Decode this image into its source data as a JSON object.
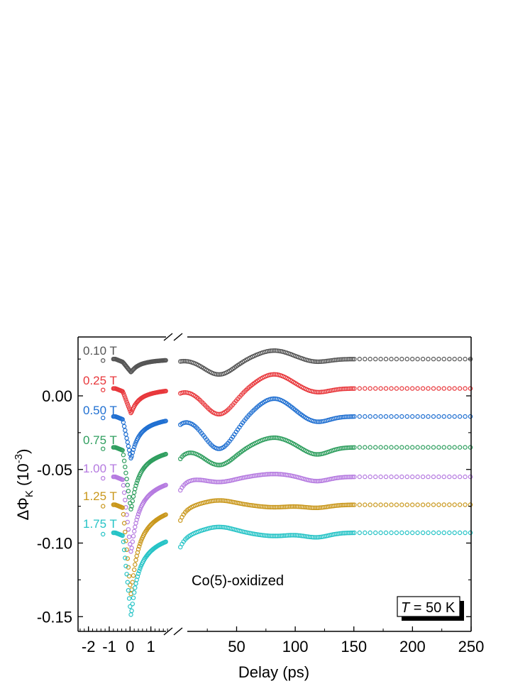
{
  "chart_data": {
    "type": "scatter",
    "xlabel": "Delay (ps)",
    "ylabel_main": "ΔΦ",
    "ylabel_sub": "K",
    "ylabel_unit_prefix": " (10",
    "ylabel_exp": "-3",
    "ylabel_unit_suffix": ")",
    "ylim": [
      -0.16,
      0.04
    ],
    "yticks": [
      "0.00",
      "-0.05",
      "-0.10",
      "-0.15"
    ],
    "ytick_values": [
      0.0,
      -0.05,
      -0.1,
      -0.15
    ],
    "x_axis_broken": true,
    "xlim_left_segment": [
      -2.5,
      1.9
    ],
    "xlim_right_segment": [
      1.9,
      250
    ],
    "xticks_left": [
      "-2",
      "-1",
      "0",
      "1"
    ],
    "xtick_values_left": [
      -2,
      -1,
      0,
      1
    ],
    "xticks_right": [
      "50",
      "100",
      "150",
      "200",
      "250"
    ],
    "xtick_values_right": [
      50,
      100,
      150,
      200,
      250
    ],
    "grid": false,
    "annotation": "Co(5)-oxidized",
    "legend_box": {
      "prefix": "T",
      "text": " = 50 K"
    },
    "series": [
      {
        "name": "0.10 T",
        "color": "#555555",
        "baseline": 0.025,
        "dip": 0.007,
        "amp2": 0.0105,
        "d2": 0.002
      },
      {
        "name": "0.25 T",
        "color": "#e8373b",
        "baseline": 0.005,
        "dip": 0.015,
        "amp2": 0.0175,
        "d2": 0.0028
      },
      {
        "name": "0.50 T",
        "color": "#1f6fd1",
        "baseline": -0.014,
        "dip": 0.027,
        "amp2": 0.022,
        "d2": 0.004
      },
      {
        "name": "0.75 T",
        "color": "#2e9e5e",
        "baseline": -0.035,
        "dip": 0.041,
        "amp2": 0.012,
        "d2": 0.005
      },
      {
        "name": "1.00 T",
        "color": "#b57ae0",
        "baseline": -0.055,
        "dip": 0.05,
        "amp2": 0.0035,
        "d2": 0.003
      },
      {
        "name": "1.25 T",
        "color": "#c9971b",
        "baseline": -0.074,
        "dip": 0.06,
        "amp2": -0.003,
        "d2": 0.002
      },
      {
        "name": "1.75 T",
        "color": "#25c3c6",
        "baseline": -0.093,
        "dip": 0.055,
        "amp2": -0.004,
        "d2": 0.003
      }
    ]
  }
}
